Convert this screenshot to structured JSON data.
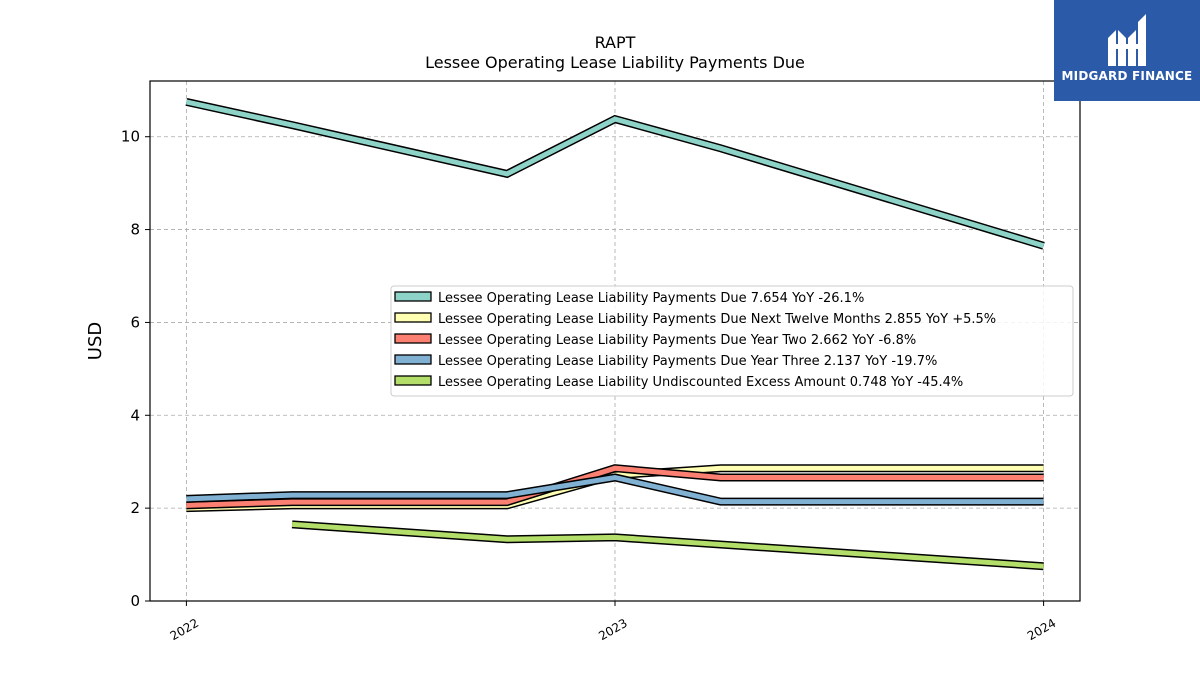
{
  "chart_data": {
    "type": "line",
    "title": "RAPT",
    "subtitle": "Lessee Operating Lease Liability Payments Due",
    "xlabel": "",
    "ylabel": "USD",
    "ylim": [
      0,
      11.2
    ],
    "yticks": [
      0,
      2,
      4,
      6,
      8,
      10
    ],
    "xlim": [
      "2021-12-01",
      "2024-02-01"
    ],
    "xticks": [
      {
        "date": "2022-01-01",
        "label": "2022"
      },
      {
        "date": "2023-01-01",
        "label": "2023"
      },
      {
        "date": "2024-01-01",
        "label": "2024"
      }
    ],
    "grid": true,
    "legend_position": "center-right",
    "series": [
      {
        "name": "Lessee Operating Lease Liability Payments Due",
        "legend": "Lessee Operating Lease Liability Payments Due  7.654 YoY -26.1%",
        "color": "#8dd3c7",
        "x": [
          "2022-01-01",
          "2022-04-01",
          "2022-10-01",
          "2023-01-01",
          "2023-04-01",
          "2024-01-01"
        ],
        "y": [
          10.75,
          10.25,
          9.2,
          10.38,
          9.75,
          7.65
        ]
      },
      {
        "name": "Lessee Operating Lease Liability Payments Due Next Twelve Months",
        "legend": "Lessee Operating Lease Liability Payments Due Next Twelve Months  2.855 YoY +5.5%",
        "color": "#ffffb3",
        "x": [
          "2022-01-01",
          "2022-04-01",
          "2022-10-01",
          "2023-01-01",
          "2023-04-01",
          "2024-01-01"
        ],
        "y": [
          2.0,
          2.06,
          2.06,
          2.71,
          2.86,
          2.86
        ]
      },
      {
        "name": "Lessee Operating Lease Liability Payments Due Year Two",
        "legend": "Lessee Operating Lease Liability Payments Due Year Two  2.662 YoY -6.8%",
        "color": "#fb8072",
        "x": [
          "2022-01-01",
          "2022-04-01",
          "2022-10-01",
          "2023-01-01",
          "2023-04-01",
          "2024-01-01"
        ],
        "y": [
          2.06,
          2.13,
          2.13,
          2.86,
          2.66,
          2.66
        ]
      },
      {
        "name": "Lessee Operating Lease Liability Payments Due Year Three",
        "legend": "Lessee Operating Lease Liability Payments Due Year Three  2.137 YoY -19.7%",
        "color": "#80b1d3",
        "x": [
          "2022-01-01",
          "2022-04-01",
          "2022-10-01",
          "2023-01-01",
          "2023-04-01",
          "2024-01-01"
        ],
        "y": [
          2.2,
          2.28,
          2.28,
          2.66,
          2.14,
          2.14
        ]
      },
      {
        "name": "Lessee Operating Lease Liability Undiscounted Excess Amount",
        "legend": "Lessee Operating Lease Liability Undiscounted Excess Amount  0.748 YoY -45.4%",
        "color": "#b3de69",
        "x": [
          "2022-04-01",
          "2022-10-01",
          "2023-01-01",
          "2024-01-01"
        ],
        "y": [
          1.65,
          1.33,
          1.37,
          0.75
        ]
      }
    ]
  },
  "logo": {
    "text": "MIDGARD FINANCE",
    "background": "#2b5aa8"
  }
}
